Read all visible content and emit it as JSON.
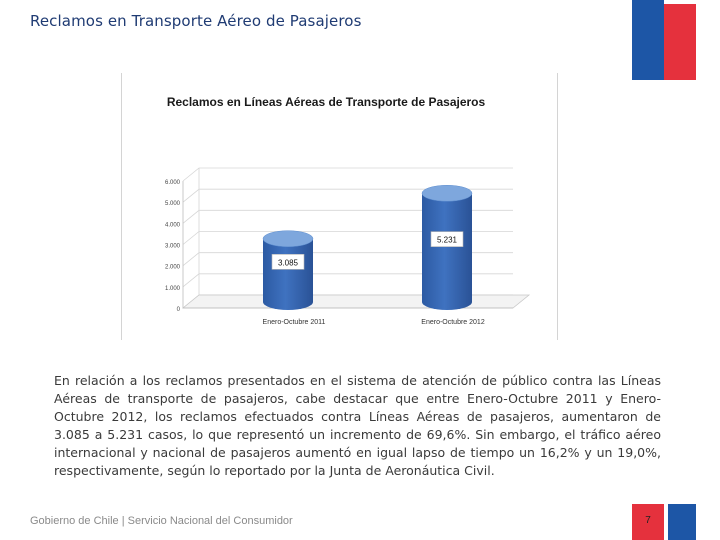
{
  "slide": {
    "title": "Reclamos en Transporte Aéreo de Pasajeros",
    "body": "En relación a los reclamos presentados en el sistema de atención de público contra las Líneas Aéreas de transporte de pasajeros, cabe destacar que entre Enero-Octubre 2011 y Enero-Octubre 2012, los reclamos efectuados contra Líneas Aéreas de pasajeros, aumentaron de 3.085 a 5.231 casos, lo que representó un incremento de 69,6%. Sin embargo, el tráfico aéreo internacional y nacional de pasajeros aumentó en igual lapso de tiempo un 16,2% y un 19,0%, respectivamente, según lo reportado por la Junta de Aeronáutica Civil.",
    "footer": "Gobierno de Chile | Servicio Nacional del Consumidor",
    "page_number": "7"
  },
  "colors": {
    "flag_blue": "#1d56a6",
    "flag_red": "#e5313d",
    "bar_fill": "#3f72c0",
    "bar_top": "#7ea7dd"
  },
  "chart_data": {
    "type": "bar",
    "title": "Reclamos en Líneas Aéreas de Transporte de Pasajeros",
    "categories": [
      "Enero-Octubre 2011",
      "Enero-Octubre 2012"
    ],
    "values": [
      3085,
      5231
    ],
    "value_labels": [
      "3.085",
      "5.231"
    ],
    "y_ticks": [
      0,
      1000,
      2000,
      3000,
      4000,
      5000,
      6000
    ],
    "y_tick_labels": [
      "0",
      "1.000",
      "2.000",
      "3.000",
      "4.000",
      "5.000",
      "6.000"
    ],
    "ylim": [
      0,
      6000
    ],
    "xlabel": "",
    "ylabel": ""
  }
}
